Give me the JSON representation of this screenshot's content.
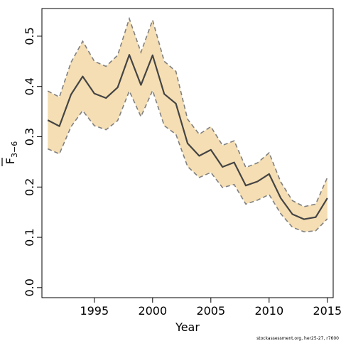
{
  "chart_data": {
    "type": "line",
    "xlabel": "Year",
    "ylabel_main": "F",
    "ylabel_sub": "3−6",
    "xlim": [
      1990.5,
      2015.5
    ],
    "ylim": [
      -0.02,
      0.555
    ],
    "xticks": [
      1995,
      2000,
      2005,
      2010,
      2015
    ],
    "yticks": [
      0.0,
      0.1,
      0.2,
      0.3,
      0.4,
      0.5
    ],
    "ytick_labels": [
      "0.0",
      "0.1",
      "0.2",
      "0.3",
      "0.4",
      "0.5"
    ],
    "grid": false,
    "band_color": "#f5deb3",
    "line_color": "#444444",
    "bound_color": "#808080",
    "x": [
      1991,
      1992,
      1993,
      1994,
      1995,
      1996,
      1997,
      1998,
      1999,
      2000,
      2001,
      2002,
      2003,
      2004,
      2005,
      2006,
      2007,
      2008,
      2009,
      2010,
      2011,
      2012,
      2013,
      2014,
      2015
    ],
    "estimate": [
      0.333,
      0.321,
      0.384,
      0.42,
      0.386,
      0.377,
      0.398,
      0.463,
      0.403,
      0.462,
      0.385,
      0.366,
      0.287,
      0.262,
      0.274,
      0.24,
      0.249,
      0.203,
      0.211,
      0.226,
      0.178,
      0.146,
      0.136,
      0.14,
      0.178
    ],
    "upper": [
      0.391,
      0.379,
      0.448,
      0.49,
      0.45,
      0.44,
      0.462,
      0.535,
      0.468,
      0.532,
      0.45,
      0.43,
      0.335,
      0.305,
      0.32,
      0.283,
      0.292,
      0.239,
      0.248,
      0.268,
      0.21,
      0.173,
      0.161,
      0.166,
      0.219
    ],
    "lower": [
      0.276,
      0.266,
      0.32,
      0.352,
      0.322,
      0.314,
      0.332,
      0.391,
      0.34,
      0.392,
      0.322,
      0.305,
      0.241,
      0.219,
      0.229,
      0.199,
      0.205,
      0.166,
      0.174,
      0.185,
      0.147,
      0.12,
      0.111,
      0.113,
      0.137
    ]
  },
  "footer_text": "stockassessment.org, her25-27, r7600"
}
